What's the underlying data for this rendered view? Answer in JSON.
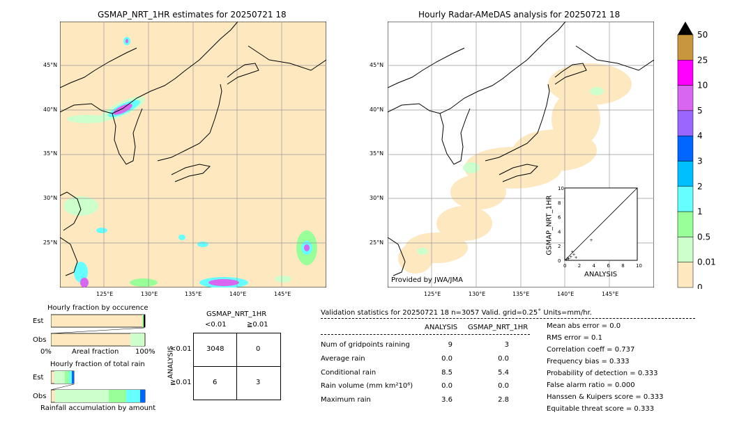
{
  "left_map": {
    "title": "GSMAP_NRT_1HR estimates for 20250721 18",
    "lat_labels": [
      "45°N",
      "40°N",
      "35°N",
      "30°N",
      "25°N"
    ],
    "lon_labels": [
      "125°E",
      "130°E",
      "135°E",
      "140°E",
      "145°E"
    ]
  },
  "right_map": {
    "title": "Hourly Radar-AMeDAS analysis for 20250721 18",
    "lat_labels": [
      "45°N",
      "40°N",
      "35°N",
      "30°N",
      "25°N"
    ],
    "lon_labels": [
      "125°E",
      "130°E",
      "135°E",
      "140°E",
      "145°E"
    ],
    "credit": "Provided by JWA/JMA"
  },
  "colorbar": {
    "labels": [
      "50",
      "25",
      "10",
      "5",
      "4",
      "3",
      "2",
      "1",
      "0.5",
      "0.01",
      "0"
    ],
    "colors": [
      "#c8963c",
      "#ff00ff",
      "#d966f0",
      "#9966ff",
      "#0066ff",
      "#00bfff",
      "#66ffff",
      "#99ff99",
      "#ccffcc",
      "#fde8c0"
    ],
    "overflow_color": "#000000"
  },
  "inset_scatter": {
    "xlabel": "ANALYSIS",
    "ylabel": "GSMAP_NRT_1HR",
    "ticks": [
      "0",
      "2",
      "4",
      "6",
      "8",
      "10"
    ]
  },
  "fraction_occurrence": {
    "title": "Hourly fraction by occurence",
    "rows": [
      "Est",
      "Obs"
    ],
    "xleft": "0%",
    "xmid": "Areal fraction",
    "xright": "100%"
  },
  "fraction_amount": {
    "title": "Hourly fraction of total rain",
    "rows": [
      "Est",
      "Obs"
    ],
    "xlabel": "Rainfall accumulation by amount"
  },
  "contingency": {
    "title": "GSMAP_NRT_1HR",
    "col_headers": [
      "<0.01",
      "≧0.01"
    ],
    "row_headers": [
      "<0.01",
      "≧0.01"
    ],
    "side_label": "ANALYSIS",
    "cells": [
      [
        "3048",
        "0"
      ],
      [
        "6",
        "3"
      ]
    ]
  },
  "validation": {
    "header": "Validation statistics for 20250721 18  n=3057 Valid. grid=0.25˚ Units=mm/hr.",
    "col1": "ANALYSIS",
    "col2": "GSMAP_NRT_1HR",
    "rows": [
      {
        "label": "Num of gridpoints raining",
        "a": "9",
        "g": "3"
      },
      {
        "label": "Average rain",
        "a": "0.0",
        "g": "0.0"
      },
      {
        "label": "Conditional rain",
        "a": "8.5",
        "g": "5.4"
      },
      {
        "label": "Rain volume (mm km²10⁶)",
        "a": "0.0",
        "g": "0.0"
      },
      {
        "label": "Maximum rain",
        "a": "3.6",
        "g": "2.8"
      }
    ],
    "scores": [
      "Mean abs error =    0.0",
      "RMS error =    0.1",
      "Correlation coeff =  0.737",
      "Frequency bias =  0.333",
      "Probability of detection =  0.333",
      "False alarm ratio =  0.000",
      "Hanssen & Kuipers score =  0.333",
      "Equitable threat score =  0.333"
    ]
  },
  "chart_data": [
    {
      "type": "heatmap",
      "title": "GSMAP_NRT_1HR estimates for 20250721 18",
      "xlim": [
        120,
        150
      ],
      "ylim": [
        20,
        50
      ]
    },
    {
      "type": "heatmap",
      "title": "Hourly Radar-AMeDAS analysis for 20250721 18",
      "xlim": [
        120,
        150
      ],
      "ylim": [
        20,
        50
      ]
    },
    {
      "type": "scatter",
      "xlabel": "ANALYSIS",
      "ylabel": "GSMAP_NRT_1HR",
      "xlim": [
        0,
        10
      ],
      "ylim": [
        0,
        10
      ],
      "x": [
        0.2,
        0.4,
        0.5,
        0.8,
        1.0,
        1.2,
        1.5,
        3.6
      ],
      "y": [
        0.1,
        0.3,
        0.2,
        0.5,
        1.2,
        0.8,
        0.4,
        2.8
      ]
    },
    {
      "type": "bar",
      "title": "Hourly fraction by occurence",
      "categories": [
        "Est",
        "Obs"
      ],
      "values": [
        0.98,
        0.85
      ]
    },
    {
      "type": "table",
      "title": "GSMAP_NRT_1HR",
      "rows": [
        [
          "3048",
          "0"
        ],
        [
          "6",
          "3"
        ]
      ]
    }
  ]
}
